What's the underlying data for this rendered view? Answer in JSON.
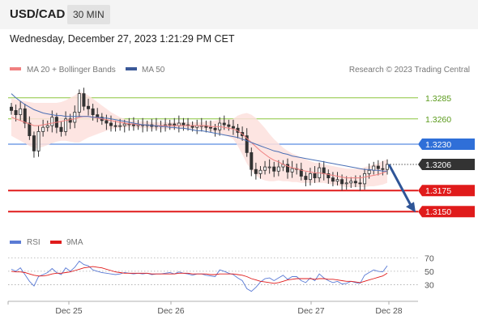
{
  "header": {
    "symbol": "USD/CAD",
    "interval": "30 MIN",
    "timestamp": "Wednesday, December 27, 2023 1:21:29 PM CET"
  },
  "legend": {
    "ma20_label": "MA 20 + Bollinger Bands",
    "ma50_label": "MA 50",
    "source": "Research © 2023 Trading Central",
    "rsi_label": "RSI",
    "rsi_ma_label": "9MA"
  },
  "colors": {
    "ma20": "#f08080",
    "bollinger_fill": "#fde0dd",
    "ma50": "#4a6fb5",
    "resistance": "#8cc63f",
    "pivot": "#2f6fd8",
    "support": "#e01b1b",
    "current": "#333333",
    "arrow": "#2f5597",
    "rsi": "#5b7bd5",
    "rsi_ma": "#e01b1b"
  },
  "chart_data": [
    {
      "type": "candlestick",
      "title": "",
      "x_ticks": [
        "Dec 25",
        "Dec 26",
        "Dec 27",
        "Dec 28"
      ],
      "ylim": [
        1.313,
        1.3305
      ],
      "levels": [
        {
          "value": 1.3285,
          "label": "1.3285",
          "kind": "resistance"
        },
        {
          "value": 1.326,
          "label": "1.3260",
          "kind": "resistance"
        },
        {
          "value": 1.323,
          "label": "1.3230",
          "kind": "pivot"
        },
        {
          "value": 1.3206,
          "label": "1.3206",
          "kind": "current"
        },
        {
          "value": 1.3175,
          "label": "1.3175",
          "kind": "support"
        },
        {
          "value": 1.315,
          "label": "1.3150",
          "kind": "support"
        }
      ],
      "close": [
        1.327,
        1.3265,
        1.3272,
        1.3255,
        1.324,
        1.3222,
        1.3245,
        1.325,
        1.3252,
        1.3262,
        1.325,
        1.3245,
        1.326,
        1.3256,
        1.3268,
        1.329,
        1.3275,
        1.3272,
        1.3265,
        1.3262,
        1.3258,
        1.3255,
        1.3252,
        1.3251,
        1.3252,
        1.3254,
        1.3253,
        1.3252,
        1.3253,
        1.3252,
        1.3253,
        1.3251,
        1.3252,
        1.3252,
        1.3253,
        1.3254,
        1.3252,
        1.3255,
        1.3253,
        1.3252,
        1.325,
        1.3252,
        1.3252,
        1.325,
        1.3249,
        1.3247,
        1.3255,
        1.3253,
        1.3251,
        1.3249,
        1.3244,
        1.324,
        1.322,
        1.32,
        1.3195,
        1.3199,
        1.3203,
        1.3203,
        1.3198,
        1.3203,
        1.3206,
        1.3197,
        1.3201,
        1.32,
        1.3192,
        1.3188,
        1.3195,
        1.319,
        1.3202,
        1.3195,
        1.319,
        1.3186,
        1.3188,
        1.3183,
        1.3184,
        1.3186,
        1.3184,
        1.3183,
        1.3195,
        1.3199,
        1.3204,
        1.3201,
        1.32,
        1.3206
      ],
      "ma20": [
        1.3262,
        1.326,
        1.3258,
        1.3256,
        1.3254,
        1.3252,
        1.3252,
        1.3253,
        1.3254,
        1.3255,
        1.3256,
        1.3257,
        1.3258,
        1.3259,
        1.326,
        1.3262,
        1.3263,
        1.3263,
        1.3262,
        1.3261,
        1.326,
        1.3259,
        1.3258,
        1.3257,
        1.3256,
        1.3255,
        1.3254,
        1.3254,
        1.3253,
        1.3253,
        1.3253,
        1.3252,
        1.3252,
        1.3252,
        1.3252,
        1.3252,
        1.3252,
        1.3252,
        1.3252,
        1.3252,
        1.3252,
        1.3252,
        1.3252,
        1.3252,
        1.3251,
        1.3251,
        1.3251,
        1.325,
        1.3249,
        1.3248,
        1.3246,
        1.3242,
        1.3237,
        1.3232,
        1.3227,
        1.3222,
        1.3218,
        1.3214,
        1.3211,
        1.3209,
        1.3206,
        1.3204,
        1.3202,
        1.3201,
        1.3199,
        1.3198,
        1.3197,
        1.3196,
        1.3196,
        1.3195,
        1.3194,
        1.3193,
        1.3192,
        1.3191,
        1.319,
        1.319,
        1.319,
        1.319,
        1.3191,
        1.3192,
        1.3193,
        1.3194,
        1.3196,
        1.3198
      ],
      "ma50": [
        1.329,
        1.3285,
        1.3281,
        1.3277,
        1.3274,
        1.3271,
        1.3269,
        1.3267,
        1.3266,
        1.3265,
        1.3264,
        1.3264,
        1.3263,
        1.3263,
        1.3263,
        1.3263,
        1.3263,
        1.3263,
        1.3262,
        1.3262,
        1.3261,
        1.3261,
        1.326,
        1.3259,
        1.3258,
        1.3257,
        1.3256,
        1.3255,
        1.3254,
        1.3253,
        1.3253,
        1.3252,
        1.3252,
        1.3251,
        1.3251,
        1.325,
        1.325,
        1.3249,
        1.3249,
        1.3248,
        1.3247,
        1.3246,
        1.3246,
        1.3245,
        1.3244,
        1.3243,
        1.3242,
        1.3241,
        1.324,
        1.3239,
        1.3238,
        1.3236,
        1.3234,
        1.3232,
        1.323,
        1.3228,
        1.3226,
        1.3224,
        1.3222,
        1.3221,
        1.3219,
        1.3218,
        1.3216,
        1.3215,
        1.3214,
        1.3213,
        1.3212,
        1.3211,
        1.321,
        1.3209,
        1.3208,
        1.3207,
        1.3206,
        1.3205,
        1.3204,
        1.3203,
        1.3202,
        1.3201,
        1.32,
        1.32,
        1.3199,
        1.3199,
        1.3198,
        1.3198
      ],
      "band_width": [
        0.0022,
        0.0023,
        0.0024,
        0.0025,
        0.0026,
        0.0027,
        0.0027,
        0.0026,
        0.0025,
        0.0024,
        0.0023,
        0.0023,
        0.0024,
        0.0026,
        0.0028,
        0.003,
        0.0028,
        0.0025,
        0.0022,
        0.0019,
        0.0016,
        0.0013,
        0.001,
        0.0008,
        0.0006,
        0.0005,
        0.0004,
        0.0004,
        0.0004,
        0.0004,
        0.0004,
        0.0004,
        0.0004,
        0.0004,
        0.0004,
        0.0004,
        0.0004,
        0.0004,
        0.0004,
        0.0004,
        0.0004,
        0.0004,
        0.0004,
        0.0005,
        0.0006,
        0.0007,
        0.0008,
        0.0009,
        0.001,
        0.0012,
        0.0018,
        0.0024,
        0.003,
        0.0033,
        0.0034,
        0.0033,
        0.0031,
        0.0028,
        0.0025,
        0.0022,
        0.002,
        0.0018,
        0.0017,
        0.0016,
        0.0015,
        0.0014,
        0.0013,
        0.0012,
        0.0012,
        0.0011,
        0.0011,
        0.0011,
        0.0011,
        0.0011,
        0.0011,
        0.0011,
        0.0011,
        0.0011,
        0.0012,
        0.0012,
        0.0013,
        0.0013,
        0.0014,
        0.0014
      ],
      "projection": {
        "from": 1.3206,
        "to": 1.315
      }
    },
    {
      "type": "line",
      "title": "",
      "series_labels": [
        "RSI",
        "9MA"
      ],
      "y_ticks": [
        70,
        50,
        30
      ],
      "ylim": [
        10,
        80
      ],
      "rsi": [
        53,
        50,
        55,
        45,
        35,
        28,
        42,
        45,
        48,
        54,
        48,
        45,
        55,
        50,
        56,
        65,
        60,
        58,
        52,
        50,
        48,
        47,
        46,
        45,
        46,
        48,
        47,
        46,
        47,
        46,
        47,
        45,
        46,
        46,
        47,
        48,
        46,
        49,
        47,
        46,
        44,
        46,
        46,
        44,
        43,
        42,
        52,
        50,
        47,
        45,
        40,
        36,
        24,
        20,
        26,
        34,
        39,
        40,
        36,
        40,
        44,
        38,
        42,
        42,
        36,
        33,
        40,
        36,
        46,
        40,
        36,
        33,
        35,
        31,
        32,
        35,
        33,
        32,
        44,
        48,
        52,
        50,
        49,
        58
      ],
      "rsi_ma": [
        50,
        49,
        49,
        48,
        46,
        44,
        43,
        43,
        44,
        46,
        47,
        47,
        48,
        49,
        51,
        53,
        55,
        56,
        57,
        56,
        55,
        53,
        51,
        49,
        48,
        47,
        47,
        47,
        47,
        47,
        47,
        46,
        46,
        46,
        46,
        46,
        46,
        47,
        47,
        47,
        46,
        46,
        46,
        46,
        45,
        45,
        46,
        46,
        46,
        46,
        45,
        44,
        42,
        39,
        37,
        35,
        34,
        33,
        32,
        33,
        35,
        37,
        38,
        39,
        39,
        39,
        39,
        38,
        39,
        39,
        38,
        38,
        37,
        36,
        35,
        35,
        34,
        33,
        35,
        37,
        39,
        41,
        43,
        47
      ]
    }
  ]
}
